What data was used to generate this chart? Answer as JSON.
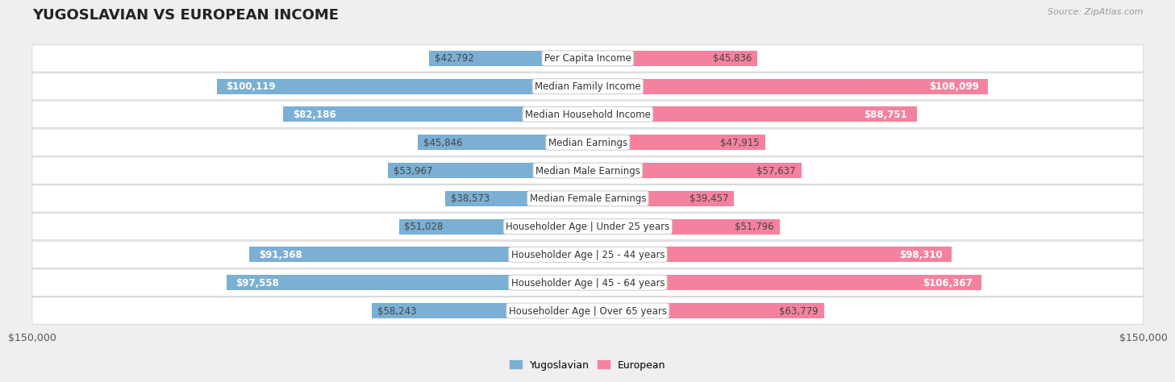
{
  "title": "YUGOSLAVIAN VS EUROPEAN INCOME",
  "source": "Source: ZipAtlas.com",
  "categories": [
    "Per Capita Income",
    "Median Family Income",
    "Median Household Income",
    "Median Earnings",
    "Median Male Earnings",
    "Median Female Earnings",
    "Householder Age | Under 25 years",
    "Householder Age | 25 - 44 years",
    "Householder Age | 45 - 64 years",
    "Householder Age | Over 65 years"
  ],
  "yugoslavian_values": [
    42792,
    100119,
    82186,
    45846,
    53967,
    38573,
    51028,
    91368,
    97558,
    58243
  ],
  "european_values": [
    45836,
    108099,
    88751,
    47915,
    57637,
    39457,
    51796,
    98310,
    106367,
    63779
  ],
  "yugoslavian_labels": [
    "$42,792",
    "$100,119",
    "$82,186",
    "$45,846",
    "$53,967",
    "$38,573",
    "$51,028",
    "$91,368",
    "$97,558",
    "$58,243"
  ],
  "european_labels": [
    "$45,836",
    "$108,099",
    "$88,751",
    "$47,915",
    "$57,637",
    "$39,457",
    "$51,796",
    "$98,310",
    "$106,367",
    "$63,779"
  ],
  "yugoslavian_color": "#7bafd4",
  "european_color": "#f4829e",
  "max_value": 150000,
  "background_color": "#efefef",
  "title_fontsize": 13,
  "label_fontsize": 8.5,
  "category_fontsize": 8.5,
  "axis_label": "$150,000",
  "legend_labels": [
    "Yugoslavian",
    "European"
  ],
  "yug_inside_threshold": 65000,
  "eur_inside_threshold": 65000
}
